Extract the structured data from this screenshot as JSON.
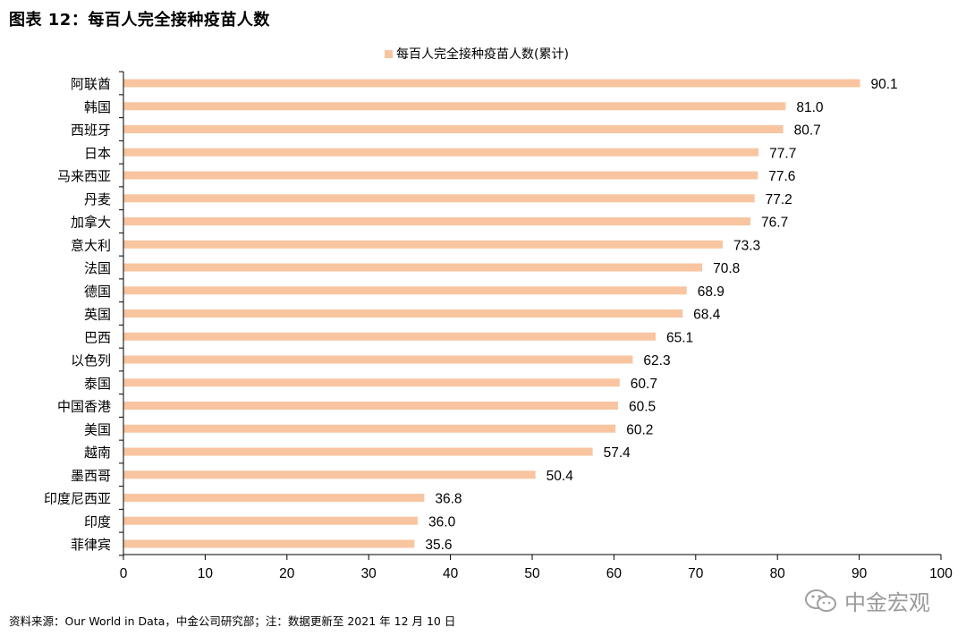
{
  "header": {
    "title": "图表 12：每百人完全接种疫苗人数"
  },
  "footer": {
    "source": "资料来源：Our World in Data，中金公司研究部；注：数据更新至 2021 年 12 月 10 日",
    "watermark": "中金宏观"
  },
  "colors": {
    "bar": "#f8c5a0",
    "axis": "#000000",
    "text": "#000000",
    "watermark": "#9a9a9a"
  },
  "chart_data": {
    "type": "bar",
    "orientation": "horizontal",
    "title": "",
    "xlabel": "",
    "ylabel": "",
    "xlim": [
      0,
      100
    ],
    "xticks": [
      0,
      10,
      20,
      30,
      40,
      50,
      60,
      70,
      80,
      90,
      100
    ],
    "grid": false,
    "legend_position": "top-center",
    "categories": [
      "阿联酋",
      "韩国",
      "西班牙",
      "日本",
      "马来西亚",
      "丹麦",
      "加拿大",
      "意大利",
      "法国",
      "德国",
      "英国",
      "巴西",
      "以色列",
      "泰国",
      "中国香港",
      "美国",
      "越南",
      "墨西哥",
      "印度尼西亚",
      "印度",
      "菲律宾"
    ],
    "series": [
      {
        "name": "每百人完全接种疫苗人数(累计)",
        "values": [
          90.1,
          81.0,
          80.7,
          77.7,
          77.6,
          77.2,
          76.7,
          73.3,
          70.8,
          68.9,
          68.4,
          65.1,
          62.3,
          60.7,
          60.5,
          60.2,
          57.4,
          50.4,
          36.8,
          36.0,
          35.6
        ],
        "labels": [
          "90.1",
          "81.0",
          "80.7",
          "77.7",
          "77.6",
          "77.2",
          "76.7",
          "73.3",
          "70.8",
          "68.9",
          "68.4",
          "65.1",
          "62.3",
          "60.7",
          "60.5",
          "60.2",
          "57.4",
          "50.4",
          "36.8",
          "36.0",
          "35.6"
        ]
      }
    ]
  }
}
